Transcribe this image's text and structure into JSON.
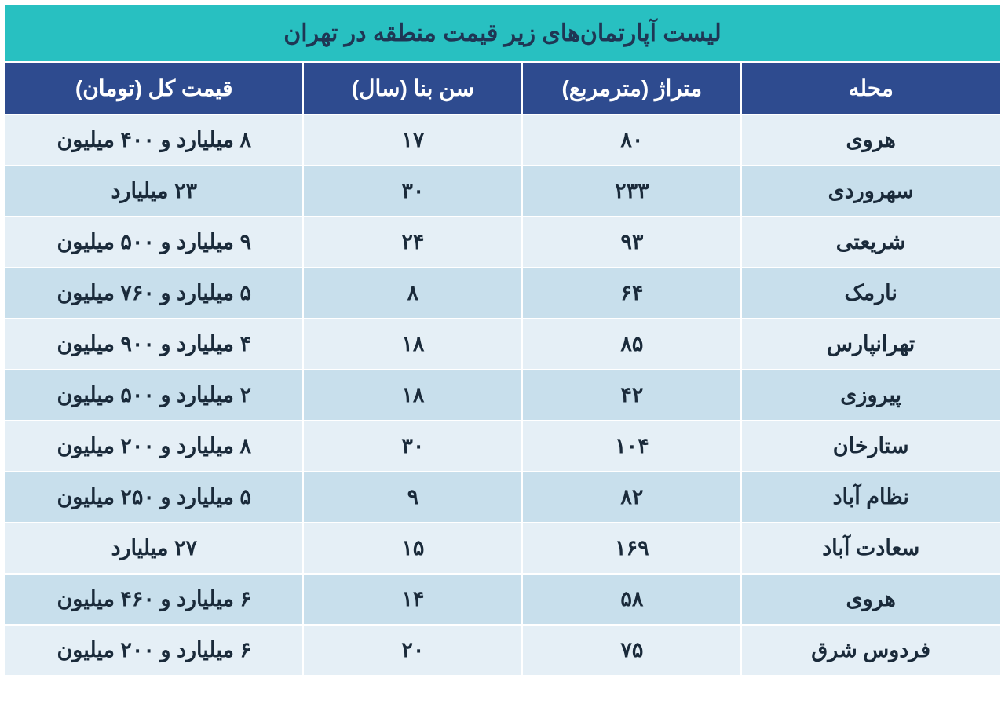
{
  "table": {
    "title": "لیست آپارتمان‌های زیر قیمت منطقه در تهران",
    "columns": [
      "محله",
      "متراژ (مترمربع)",
      "سن بنا (سال)",
      "قیمت کل (تومان)"
    ],
    "rows": [
      {
        "district": "هروی",
        "area": "۸۰",
        "age": "۱۷",
        "price": "۸ میلیارد و ۴۰۰ میلیون"
      },
      {
        "district": "سهروردی",
        "area": "۲۳۳",
        "age": "۳۰",
        "price": "۲۳ میلیارد"
      },
      {
        "district": "شریعتی",
        "area": "۹۳",
        "age": "۲۴",
        "price": "۹ میلیارد و ۵۰۰ میلیون"
      },
      {
        "district": "نارمک",
        "area": "۶۴",
        "age": "۸",
        "price": "۵ میلیارد و ۷۶۰ میلیون"
      },
      {
        "district": "تهرانپارس",
        "area": "۸۵",
        "age": "۱۸",
        "price": "۴ میلیارد و ۹۰۰ میلیون"
      },
      {
        "district": "پیروزی",
        "area": "۴۲",
        "age": "۱۸",
        "price": "۲ میلیارد و ۵۰۰ میلیون"
      },
      {
        "district": "ستارخان",
        "area": "۱۰۴",
        "age": "۳۰",
        "price": "۸ میلیارد و ۲۰۰ میلیون"
      },
      {
        "district": "نظام آباد",
        "area": "۸۲",
        "age": "۹",
        "price": "۵ میلیارد و ۲۵۰ میلیون"
      },
      {
        "district": "سعادت آباد",
        "area": "۱۶۹",
        "age": "۱۵",
        "price": "۲۷ میلیارد"
      },
      {
        "district": "هروی",
        "area": "۵۸",
        "age": "۱۴",
        "price": "۶ میلیارد و ۴۶۰ میلیون"
      },
      {
        "district": "فردوس شرق",
        "area": "۷۵",
        "age": "۲۰",
        "price": "۶ میلیارد و ۲۰۰ میلیون"
      }
    ],
    "colors": {
      "title_bg": "#28c0c1",
      "title_text": "#1f3654",
      "header_bg": "#2e4b8f",
      "header_text": "#ffffff",
      "row_even_bg": "#e5eff6",
      "row_odd_bg": "#c8dfec",
      "cell_text": "#1a2a3a",
      "border": "#ffffff"
    },
    "typography": {
      "title_fontsize": 30,
      "header_fontsize": 28,
      "cell_fontsize": 27,
      "font_weight": "bold"
    },
    "layout": {
      "col_widths_percent": [
        26,
        22,
        22,
        30
      ]
    }
  }
}
